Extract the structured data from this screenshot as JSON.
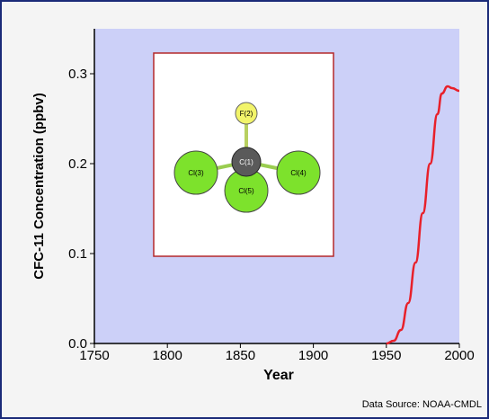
{
  "chart_data": {
    "type": "line",
    "title": "",
    "xlabel": "Year",
    "ylabel": "CFC-11 Concentration (ppbv)",
    "xlim": [
      1750,
      2000
    ],
    "ylim": [
      0,
      0.35
    ],
    "xticks": [
      1750,
      1800,
      1850,
      1900,
      1950,
      2000
    ],
    "yticks": [
      0.0,
      0.1,
      0.2,
      0.3
    ],
    "ytick_labels": [
      "0.0",
      "0.1",
      "0.2",
      "0.3"
    ],
    "grid": false,
    "series": [
      {
        "color": "#e8202a",
        "x": [
          1950,
          1955,
          1960,
          1965,
          1970,
          1975,
          1980,
          1985,
          1988,
          1992,
          1995,
          2000
        ],
        "y": [
          0.0,
          0.003,
          0.015,
          0.045,
          0.09,
          0.145,
          0.2,
          0.255,
          0.278,
          0.286,
          0.284,
          0.281
        ]
      }
    ],
    "plot_background": "#ccd0f8"
  },
  "molecule": {
    "atoms": [
      {
        "label": "F(2)",
        "color": "#f2f46a"
      },
      {
        "label": "C(1)",
        "color": "#5a5a5a"
      },
      {
        "label": "Cl(3)",
        "color": "#7de22c"
      },
      {
        "label": "Cl(4)",
        "color": "#7de22c"
      },
      {
        "label": "Cl(5)",
        "color": "#7de22c"
      }
    ],
    "border_color": "#b4282a"
  },
  "source": "Data Source: NOAA-CMDL"
}
